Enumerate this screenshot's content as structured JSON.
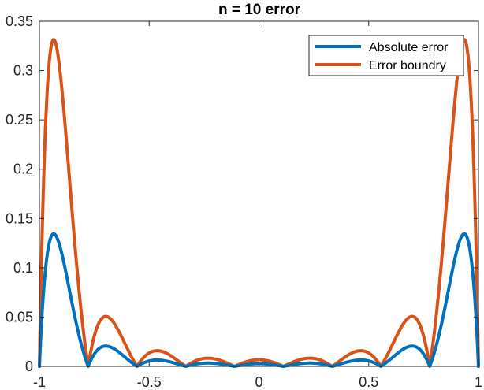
{
  "chart_data": {
    "type": "line",
    "title": "n = 10 error",
    "xlabel": "",
    "ylabel": "",
    "xlim": [
      -1,
      1
    ],
    "ylim": [
      0,
      0.35
    ],
    "x_ticks": [
      -1,
      -0.5,
      0,
      0.5,
      1
    ],
    "x_tick_labels": [
      "-1",
      "-0.5",
      "0",
      "0.5",
      "1"
    ],
    "y_ticks": [
      0,
      0.05,
      0.1,
      0.15,
      0.2,
      0.25,
      0.3,
      0.35
    ],
    "y_tick_labels": [
      "0",
      "0.05",
      "0.1",
      "0.15",
      "0.2",
      "0.25",
      "0.3",
      "0.35"
    ],
    "grid": false,
    "legend_position": "top-right",
    "nodes": [
      -1,
      -0.7778,
      -0.5556,
      -0.3333,
      -0.1111,
      0.1111,
      0.3333,
      0.5556,
      0.7778,
      1
    ],
    "series": [
      {
        "name": "Absolute error",
        "color": "#0072BD",
        "peak_abs": 0.1345
      },
      {
        "name": "Error boundry",
        "color": "#D95319",
        "peak_abs": 0.3315
      }
    ]
  }
}
